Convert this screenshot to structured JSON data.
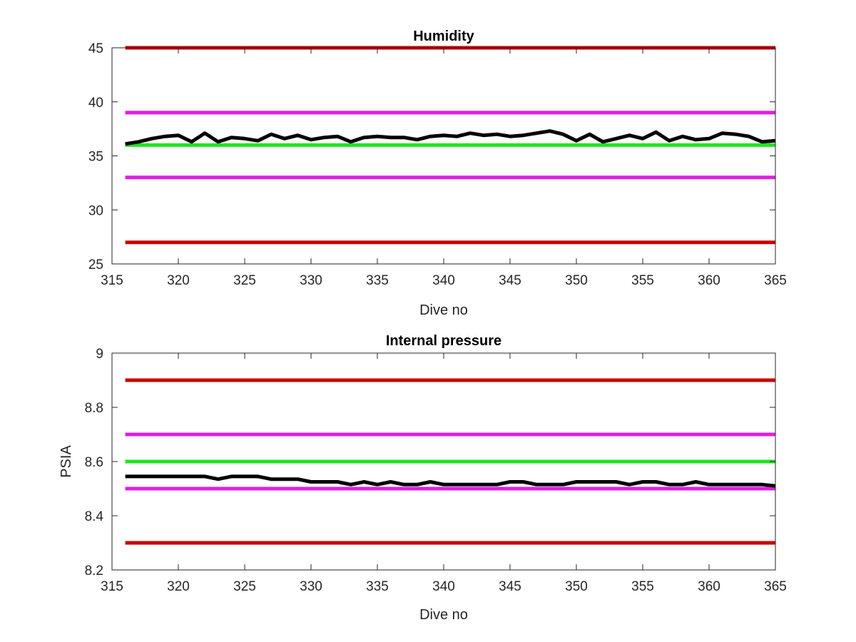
{
  "chart_data": [
    {
      "type": "line",
      "title": "Humidity",
      "xlabel": "Dive no",
      "ylabel": "",
      "xlim": [
        315,
        365
      ],
      "ylim": [
        25,
        45
      ],
      "xticks": [
        "315",
        "320",
        "325",
        "330",
        "335",
        "340",
        "345",
        "350",
        "355",
        "360",
        "365"
      ],
      "yticks": [
        "25",
        "30",
        "35",
        "40",
        "45"
      ],
      "grid": false,
      "reference_lines": [
        {
          "y": 45,
          "x_range": [
            316,
            365
          ],
          "color": "#cc0000"
        },
        {
          "y": 39,
          "x_range": [
            316,
            365
          ],
          "color": "#e01ee0"
        },
        {
          "y": 36,
          "x_range": [
            316,
            365
          ],
          "color": "#1ee61e"
        },
        {
          "y": 33,
          "x_range": [
            316,
            365
          ],
          "color": "#e01ee0"
        },
        {
          "y": 27,
          "x_range": [
            316,
            365
          ],
          "color": "#cc0000"
        }
      ],
      "series": [
        {
          "color": "#000000",
          "x": [
            316,
            317,
            318,
            319,
            320,
            321,
            322,
            323,
            324,
            325,
            326,
            327,
            328,
            329,
            330,
            331,
            332,
            333,
            334,
            335,
            336,
            337,
            338,
            339,
            340,
            341,
            342,
            343,
            344,
            345,
            346,
            347,
            348,
            349,
            350,
            351,
            352,
            353,
            354,
            355,
            356,
            357,
            358,
            359,
            360,
            361,
            362,
            363,
            364,
            365
          ],
          "y": [
            36.1,
            36.3,
            36.6,
            36.8,
            36.9,
            36.3,
            37.1,
            36.3,
            36.7,
            36.6,
            36.4,
            37.0,
            36.6,
            36.9,
            36.5,
            36.7,
            36.8,
            36.3,
            36.7,
            36.8,
            36.7,
            36.7,
            36.5,
            36.8,
            36.9,
            36.8,
            37.1,
            36.9,
            37.0,
            36.8,
            36.9,
            37.1,
            37.3,
            37.0,
            36.4,
            37.0,
            36.3,
            36.6,
            36.9,
            36.6,
            37.2,
            36.4,
            36.8,
            36.5,
            36.6,
            37.1,
            37.0,
            36.8,
            36.3,
            36.4
          ]
        }
      ]
    },
    {
      "type": "line",
      "title": "Internal pressure",
      "xlabel": "Dive no",
      "ylabel": "PSIA",
      "xlim": [
        315,
        365
      ],
      "ylim": [
        8.2,
        9.0
      ],
      "xticks": [
        "315",
        "320",
        "325",
        "330",
        "335",
        "340",
        "345",
        "350",
        "355",
        "360",
        "365"
      ],
      "yticks": [
        "8.2",
        "8.4",
        "8.6",
        "8.8",
        "9"
      ],
      "grid": false,
      "reference_lines": [
        {
          "y": 8.9,
          "x_range": [
            316,
            365
          ],
          "color": "#cc0000"
        },
        {
          "y": 8.7,
          "x_range": [
            316,
            365
          ],
          "color": "#e01ee0"
        },
        {
          "y": 8.6,
          "x_range": [
            316,
            365
          ],
          "color": "#1ee61e"
        },
        {
          "y": 8.5,
          "x_range": [
            316,
            365
          ],
          "color": "#e01ee0"
        },
        {
          "y": 8.3,
          "x_range": [
            316,
            365
          ],
          "color": "#cc0000"
        }
      ],
      "series": [
        {
          "color": "#000000",
          "x": [
            316,
            317,
            318,
            319,
            320,
            321,
            322,
            323,
            324,
            325,
            326,
            327,
            328,
            329,
            330,
            331,
            332,
            333,
            334,
            335,
            336,
            337,
            338,
            339,
            340,
            341,
            342,
            343,
            344,
            345,
            346,
            347,
            348,
            349,
            350,
            351,
            352,
            353,
            354,
            355,
            356,
            357,
            358,
            359,
            360,
            361,
            362,
            363,
            364,
            365
          ],
          "y": [
            8.545,
            8.545,
            8.545,
            8.545,
            8.545,
            8.545,
            8.545,
            8.535,
            8.545,
            8.545,
            8.545,
            8.535,
            8.535,
            8.535,
            8.525,
            8.525,
            8.525,
            8.515,
            8.525,
            8.515,
            8.525,
            8.515,
            8.515,
            8.525,
            8.515,
            8.515,
            8.515,
            8.515,
            8.515,
            8.525,
            8.525,
            8.515,
            8.515,
            8.515,
            8.525,
            8.525,
            8.525,
            8.525,
            8.515,
            8.525,
            8.525,
            8.515,
            8.515,
            8.525,
            8.515,
            8.515,
            8.515,
            8.515,
            8.515,
            8.51
          ]
        }
      ]
    }
  ]
}
